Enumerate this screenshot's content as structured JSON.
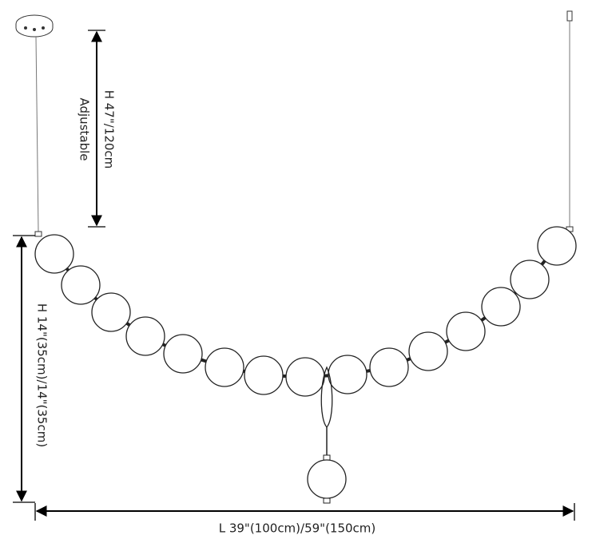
{
  "dimensions": {
    "height_adjustable": {
      "value": "H 47\"/120cm",
      "note": "Adjustable"
    },
    "height_fixture": "H 14\"(35cm)/14\"(35cm)",
    "length": "L 39\"(100cm)/59\"(150cm)"
  }
}
